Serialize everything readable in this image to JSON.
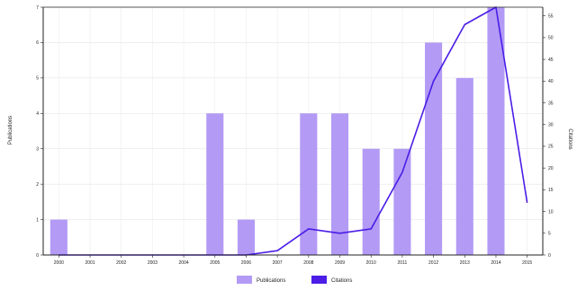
{
  "chart_data": {
    "type": "bar",
    "categories": [
      "2000",
      "2001",
      "2002",
      "2003",
      "2004",
      "2005",
      "2006",
      "2007",
      "2008",
      "2009",
      "2010",
      "2011",
      "2012",
      "2013",
      "2014",
      "2015"
    ],
    "series": [
      {
        "name": "Publications",
        "type": "bar",
        "axis": "left",
        "color": "#b39af5",
        "values": [
          1,
          0,
          0,
          0,
          0,
          4,
          1,
          0,
          4,
          4,
          3,
          3,
          6,
          5,
          7,
          0
        ]
      },
      {
        "name": "Citations",
        "type": "line",
        "axis": "right",
        "color": "#4b1de6",
        "values": [
          0,
          0,
          0,
          0,
          0,
          0,
          0,
          1,
          6,
          5,
          6,
          19,
          40,
          53,
          57,
          12
        ]
      }
    ],
    "ylabel": "Publications",
    "y2label": "Citations",
    "ylim": [
      0,
      7
    ],
    "y2lim": [
      0,
      57
    ],
    "yticks": [
      0,
      1,
      2,
      3,
      4,
      5,
      6,
      7
    ],
    "y2ticks": [
      0,
      5,
      10,
      15,
      20,
      25,
      30,
      35,
      40,
      45,
      50,
      55
    ],
    "grid": true,
    "legend_position": "bottom-center"
  }
}
